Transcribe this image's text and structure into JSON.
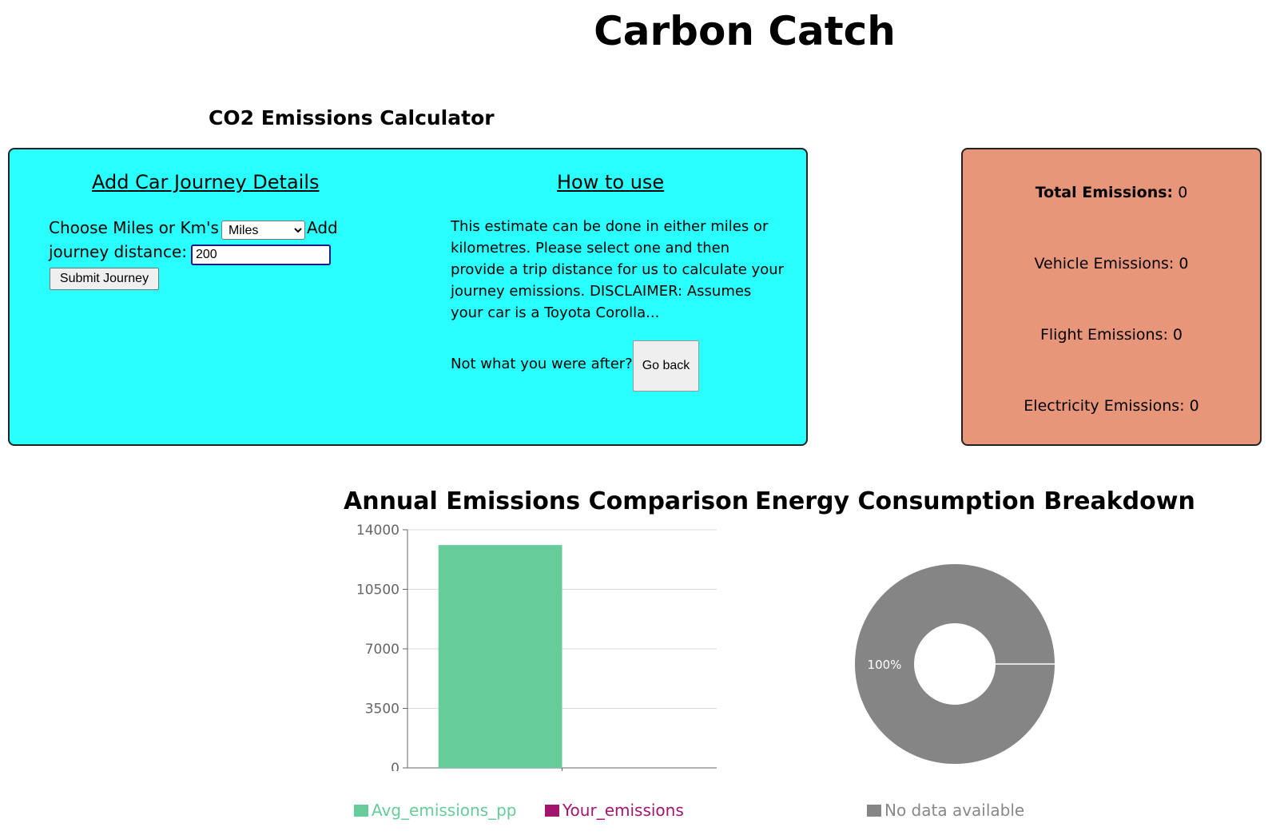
{
  "header": {
    "title": "Carbon Catch"
  },
  "calculator": {
    "heading": "CO2 Emissions Calculator",
    "journey": {
      "heading": "Add Car Journey Details",
      "units_label": "Choose Miles or Km's",
      "units_selected": "Miles",
      "add_label": "Add",
      "distance_label": "journey distance:",
      "distance_value": "200",
      "submit_label": "Submit Journey"
    },
    "howto": {
      "heading": "How to use",
      "text": "This estimate can be done in either miles or kilometres. Please select one and then provide a trip distance for us to calculate your journey emissions. DISCLAIMER: Assumes your car is a Toyota Corolla...",
      "not_after_label": "Not what you were after?",
      "go_back_label": "Go back"
    }
  },
  "summary": {
    "total_label": "Total Emissions:",
    "total_value": "0",
    "vehicle": "Vehicle Emissions: 0",
    "flight": "Flight Emissions: 0",
    "electricity": "Electricity Emissions: 0"
  },
  "colors": {
    "panel_cyan": "#2affff",
    "panel_salmon": "#e8967a",
    "avg_series": "#66cc99",
    "your_series": "#a0166f",
    "no_data": "#858585"
  },
  "chart_data": [
    {
      "type": "bar",
      "title": "Annual Emissions Comparison",
      "categories": [
        ""
      ],
      "series": [
        {
          "name": "Avg_emissions_pp",
          "values": [
            13100
          ],
          "color": "#66cc99"
        },
        {
          "name": "Your_emissions",
          "values": [
            0
          ],
          "color": "#a0166f"
        }
      ],
      "yticks": [
        "0",
        "3500",
        "7000",
        "10500",
        "14000"
      ],
      "ylim": [
        0,
        14000
      ],
      "grid": true,
      "legend": "bottom"
    },
    {
      "type": "pie",
      "title": "Energy Consumption Breakdown",
      "slices": [
        {
          "label": "No data available",
          "value": 100,
          "display": "100%",
          "color": "#858585"
        }
      ],
      "donut": true,
      "legend": "bottom"
    }
  ]
}
